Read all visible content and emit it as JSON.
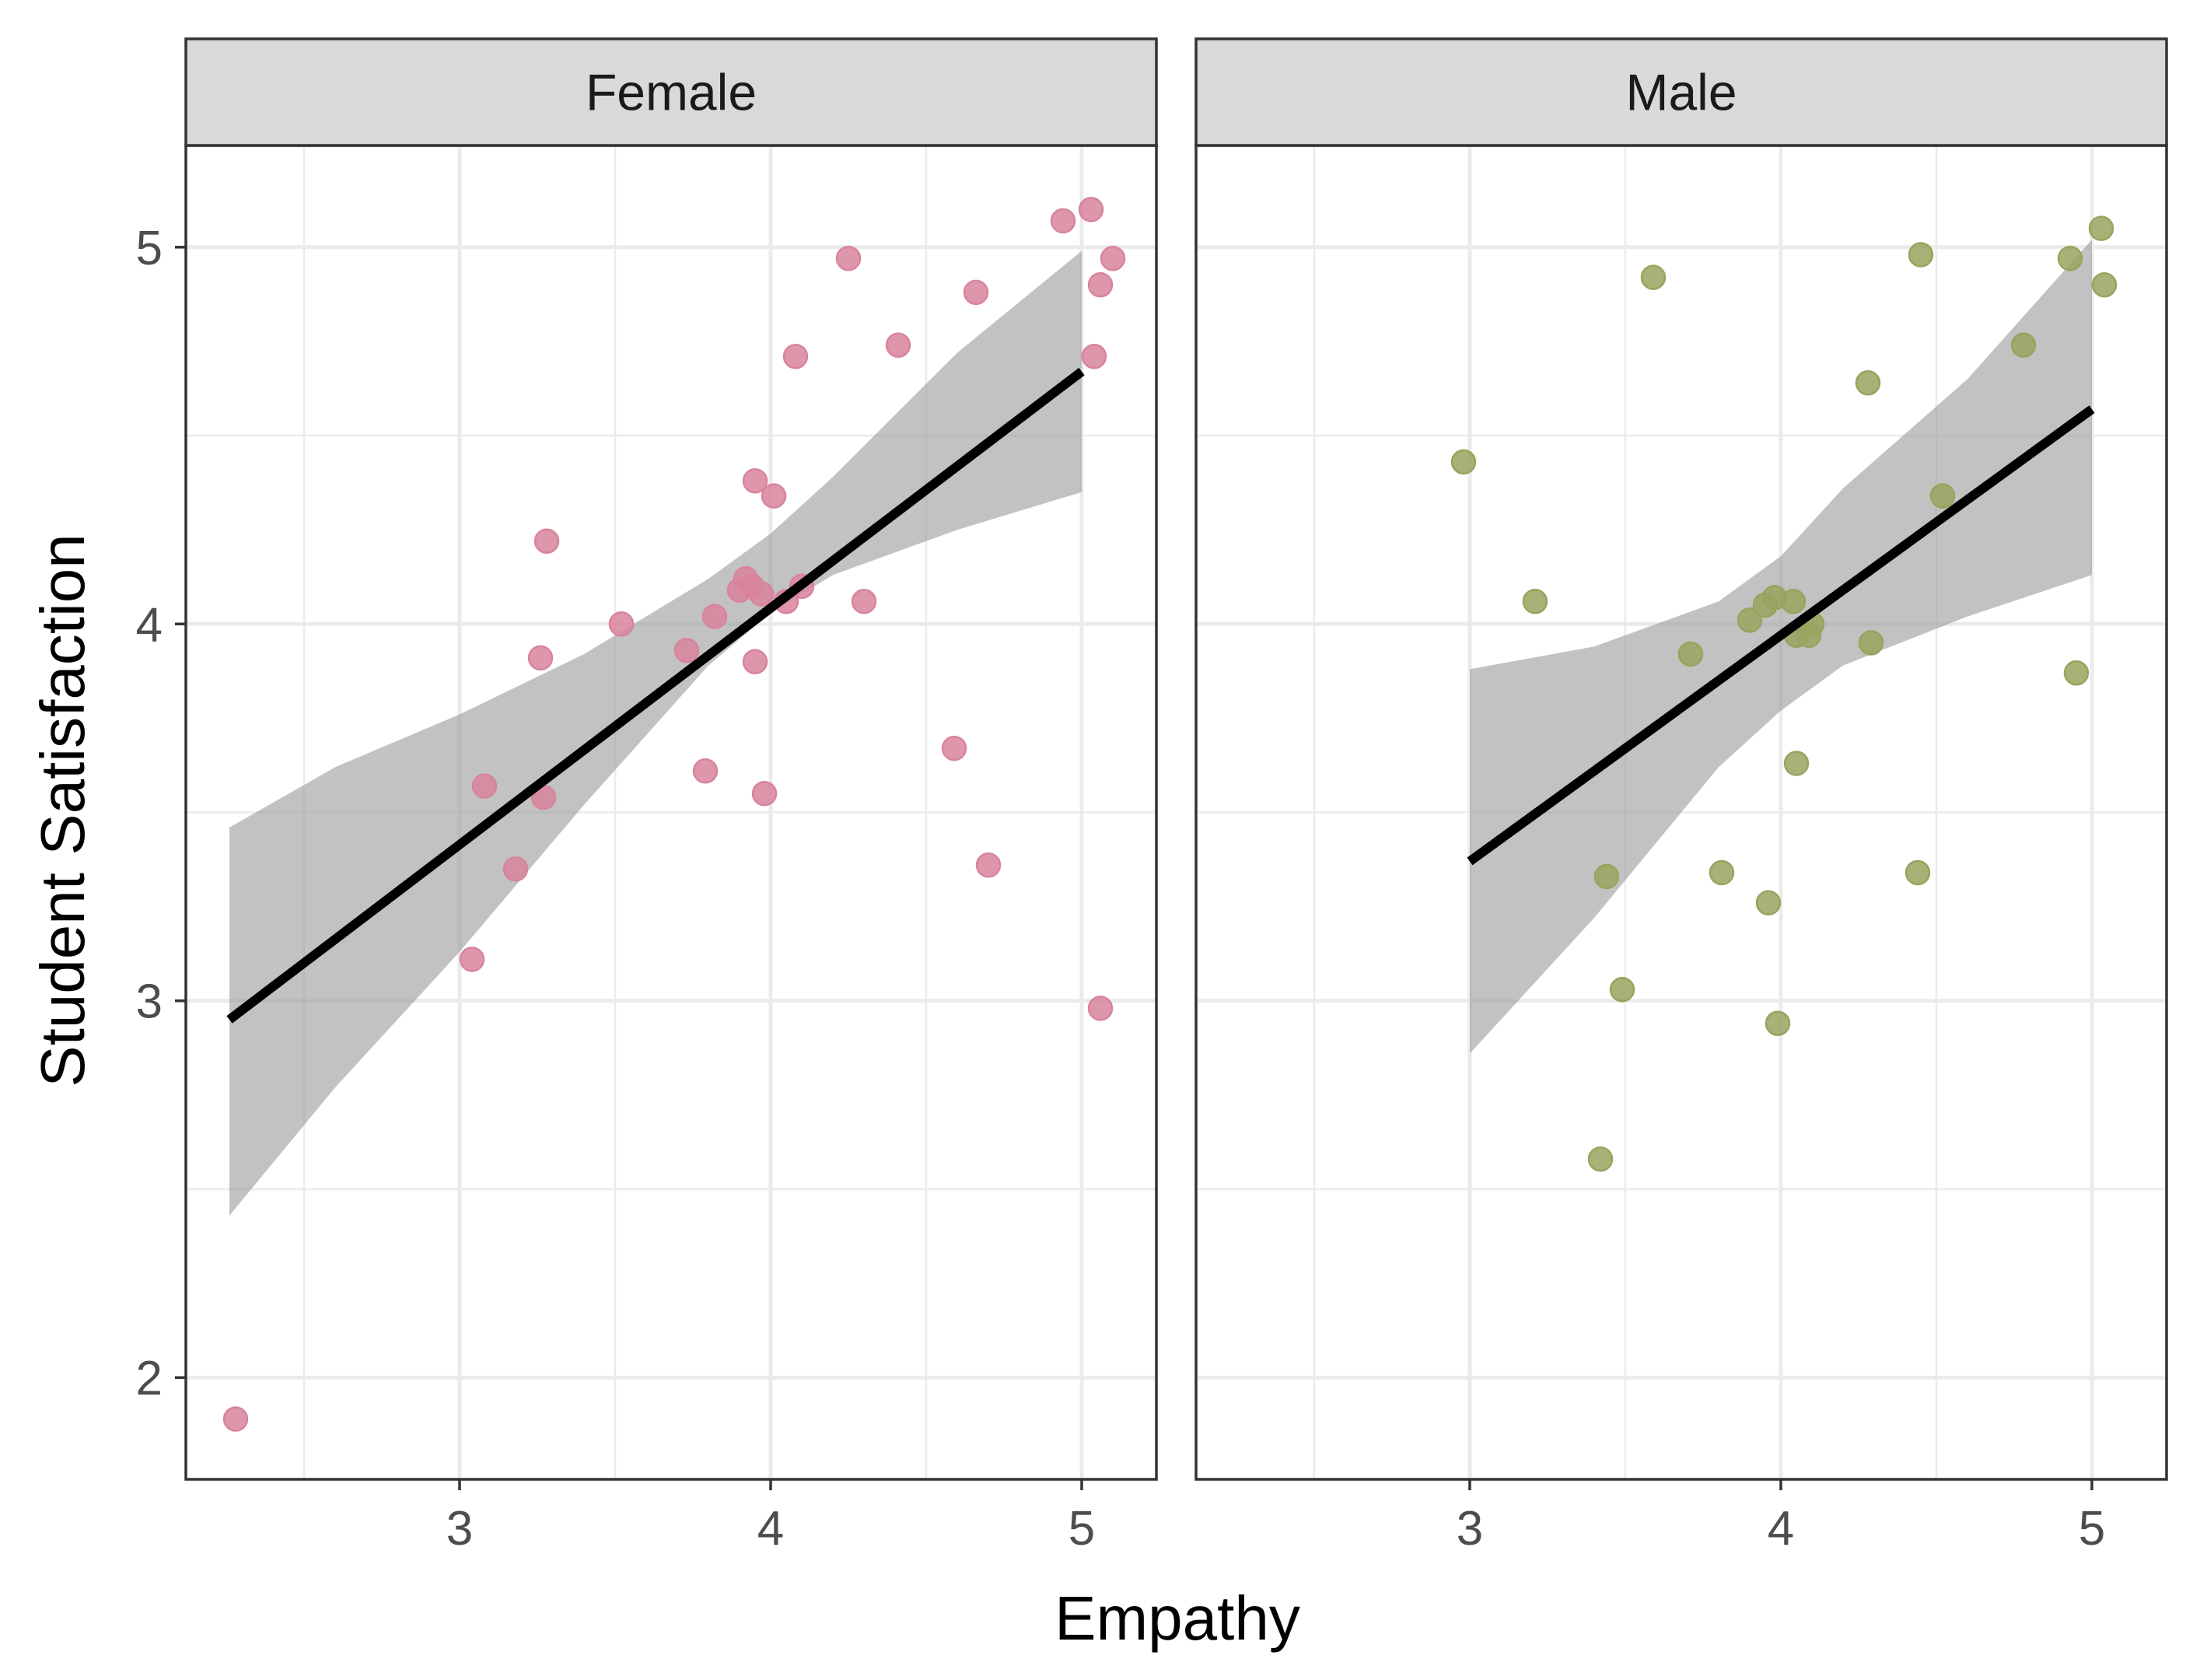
{
  "chart_data": {
    "type": "scatter",
    "xlabel": "Empathy",
    "ylabel": "Student Satisfaction",
    "xlim": [
      2.12,
      5.24
    ],
    "ylim": [
      1.73,
      5.27
    ],
    "x_ticks": [
      3,
      4,
      5
    ],
    "y_ticks": [
      2,
      3,
      4,
      5
    ],
    "grid": true,
    "panels": [
      {
        "label": "Female",
        "color": "#d8849c",
        "points": [
          [
            2.28,
            1.89
          ],
          [
            3.04,
            3.11
          ],
          [
            3.08,
            3.57
          ],
          [
            3.18,
            3.35
          ],
          [
            3.26,
            3.91
          ],
          [
            3.27,
            3.54
          ],
          [
            3.28,
            4.22
          ],
          [
            3.52,
            4.0
          ],
          [
            3.73,
            3.93
          ],
          [
            3.79,
            3.61
          ],
          [
            3.82,
            4.02
          ],
          [
            3.9,
            4.09
          ],
          [
            3.92,
            4.12
          ],
          [
            3.94,
            4.1
          ],
          [
            3.95,
            4.38
          ],
          [
            3.95,
            3.9
          ],
          [
            3.97,
            4.08
          ],
          [
            3.98,
            3.55
          ],
          [
            4.01,
            4.34
          ],
          [
            4.05,
            4.06
          ],
          [
            4.08,
            4.71
          ],
          [
            4.1,
            4.1
          ],
          [
            4.25,
            4.97
          ],
          [
            4.3,
            4.06
          ],
          [
            4.41,
            4.74
          ],
          [
            4.59,
            3.67
          ],
          [
            4.66,
            4.88
          ],
          [
            4.7,
            3.36
          ],
          [
            4.94,
            5.07
          ],
          [
            5.03,
            5.1
          ],
          [
            5.04,
            4.71
          ],
          [
            5.06,
            4.9
          ],
          [
            5.06,
            2.98
          ],
          [
            5.1,
            4.97
          ]
        ],
        "fit": {
          "x": [
            2.26,
            2.6,
            3.0,
            3.4,
            3.8,
            4.0,
            4.2,
            4.6,
            5.0
          ],
          "y": [
            2.95,
            3.19,
            3.47,
            3.76,
            4.04,
            4.17,
            4.31,
            4.59,
            4.67
          ],
          "upper": [
            3.46,
            3.62,
            3.76,
            3.92,
            4.12,
            4.24,
            4.39,
            4.72,
            4.99
          ],
          "lower": [
            2.43,
            2.77,
            3.13,
            3.52,
            3.89,
            4.03,
            4.13,
            4.25,
            4.35
          ]
        }
      },
      {
        "label": "Male",
        "color": "#9aa35e",
        "points": [
          [
            2.98,
            4.43
          ],
          [
            3.21,
            4.06
          ],
          [
            3.42,
            2.58
          ],
          [
            3.44,
            3.33
          ],
          [
            3.49,
            3.03
          ],
          [
            3.59,
            4.92
          ],
          [
            3.71,
            3.92
          ],
          [
            3.81,
            3.34
          ],
          [
            3.9,
            4.01
          ],
          [
            3.95,
            4.05
          ],
          [
            3.96,
            3.26
          ],
          [
            3.98,
            4.07
          ],
          [
            3.99,
            2.94
          ],
          [
            4.04,
            4.06
          ],
          [
            4.05,
            3.63
          ],
          [
            4.05,
            3.97
          ],
          [
            4.09,
            3.97
          ],
          [
            4.1,
            4.0
          ],
          [
            4.28,
            4.64
          ],
          [
            4.29,
            3.95
          ],
          [
            4.44,
            3.34
          ],
          [
            4.45,
            4.98
          ],
          [
            4.52,
            4.34
          ],
          [
            4.78,
            4.74
          ],
          [
            4.93,
            4.97
          ],
          [
            4.95,
            3.87
          ],
          [
            5.03,
            5.05
          ],
          [
            5.04,
            4.9
          ]
        ],
        "fit": {
          "x": [
            3.0,
            3.4,
            3.8,
            4.0,
            4.2,
            4.6,
            5.0
          ],
          "y": [
            3.37,
            3.61,
            3.85,
            3.97,
            4.09,
            4.33,
            4.57
          ],
          "upper": [
            3.88,
            3.94,
            4.06,
            4.18,
            4.36,
            4.65,
            5.02
          ],
          "lower": [
            2.86,
            3.22,
            3.62,
            3.77,
            3.89,
            4.02,
            4.13
          ]
        }
      }
    ]
  }
}
